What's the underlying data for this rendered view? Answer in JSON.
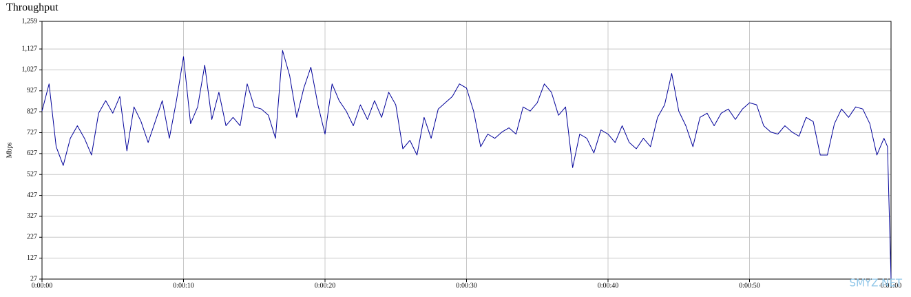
{
  "chart_data": {
    "type": "line",
    "title": "Throughput",
    "y_label": "Mbps",
    "annotation": "SMYZ.NET",
    "x": [
      0,
      0.5,
      1,
      1.5,
      2,
      2.5,
      3,
      3.5,
      4,
      4.5,
      5,
      5.5,
      6,
      6.5,
      7,
      7.5,
      8,
      8.5,
      9,
      9.5,
      10,
      10.5,
      11,
      11.5,
      12,
      12.5,
      13,
      13.5,
      14,
      14.5,
      15,
      15.5,
      16,
      16.5,
      17,
      17.5,
      18,
      18.5,
      19,
      19.5,
      20,
      20.5,
      21,
      21.5,
      22,
      22.5,
      23,
      23.5,
      24,
      24.5,
      25,
      25.5,
      26,
      26.5,
      27,
      27.5,
      28,
      28.5,
      29,
      29.5,
      30,
      30.5,
      31,
      31.5,
      32,
      32.5,
      33,
      33.5,
      34,
      34.5,
      35,
      35.5,
      36,
      36.5,
      37,
      37.5,
      38,
      38.5,
      39,
      39.5,
      40,
      40.5,
      41,
      41.5,
      42,
      42.5,
      43,
      43.5,
      44,
      44.5,
      45,
      45.5,
      46,
      46.5,
      47,
      47.5,
      48,
      48.5,
      49,
      49.5,
      50,
      50.5,
      51,
      51.5,
      52,
      52.5,
      53,
      53.5,
      54,
      54.5,
      55,
      55.5,
      56,
      56.5,
      57,
      57.5,
      58,
      58.5,
      59,
      59.5,
      59.75,
      60
    ],
    "series": [
      {
        "name": "Throughput",
        "color": "#000099",
        "values": [
          830,
          960,
          660,
          570,
          700,
          760,
          700,
          620,
          820,
          880,
          820,
          900,
          640,
          850,
          780,
          680,
          780,
          880,
          700,
          880,
          1090,
          770,
          850,
          1050,
          790,
          920,
          760,
          800,
          760,
          960,
          850,
          840,
          810,
          700,
          1120,
          1000,
          800,
          940,
          1040,
          860,
          720,
          960,
          880,
          830,
          760,
          860,
          790,
          880,
          800,
          920,
          860,
          650,
          690,
          620,
          800,
          700,
          840,
          870,
          900,
          960,
          940,
          830,
          660,
          720,
          700,
          730,
          750,
          720,
          850,
          830,
          870,
          960,
          920,
          810,
          850,
          560,
          720,
          700,
          630,
          740,
          720,
          680,
          760,
          680,
          650,
          700,
          660,
          800,
          860,
          1010,
          830,
          760,
          660,
          800,
          820,
          760,
          820,
          840,
          790,
          840,
          870,
          860,
          760,
          730,
          720,
          760,
          730,
          710,
          800,
          780,
          620,
          620,
          770,
          840,
          800,
          850,
          840,
          770,
          620,
          700,
          660,
          30
        ]
      }
    ],
    "xlim": [
      0,
      60
    ],
    "xticks": [
      {
        "value": 0,
        "label": "0:00:00"
      },
      {
        "value": 10,
        "label": "0:00:10"
      },
      {
        "value": 20,
        "label": "0:00:20"
      },
      {
        "value": 30,
        "label": "0:00:30"
      },
      {
        "value": 40,
        "label": "0:00:40"
      },
      {
        "value": 50,
        "label": "0:00:50"
      },
      {
        "value": 60,
        "label": "0:01:00"
      }
    ],
    "ylim": [
      27,
      1259
    ],
    "yticks": [
      27,
      127,
      227,
      327,
      427,
      527,
      627,
      727,
      827,
      927,
      {
        "value": 1027,
        "label": "1,027"
      },
      {
        "value": 1127,
        "label": "1,127"
      },
      {
        "value": 1259,
        "label": "1,259"
      }
    ],
    "grid": true
  }
}
